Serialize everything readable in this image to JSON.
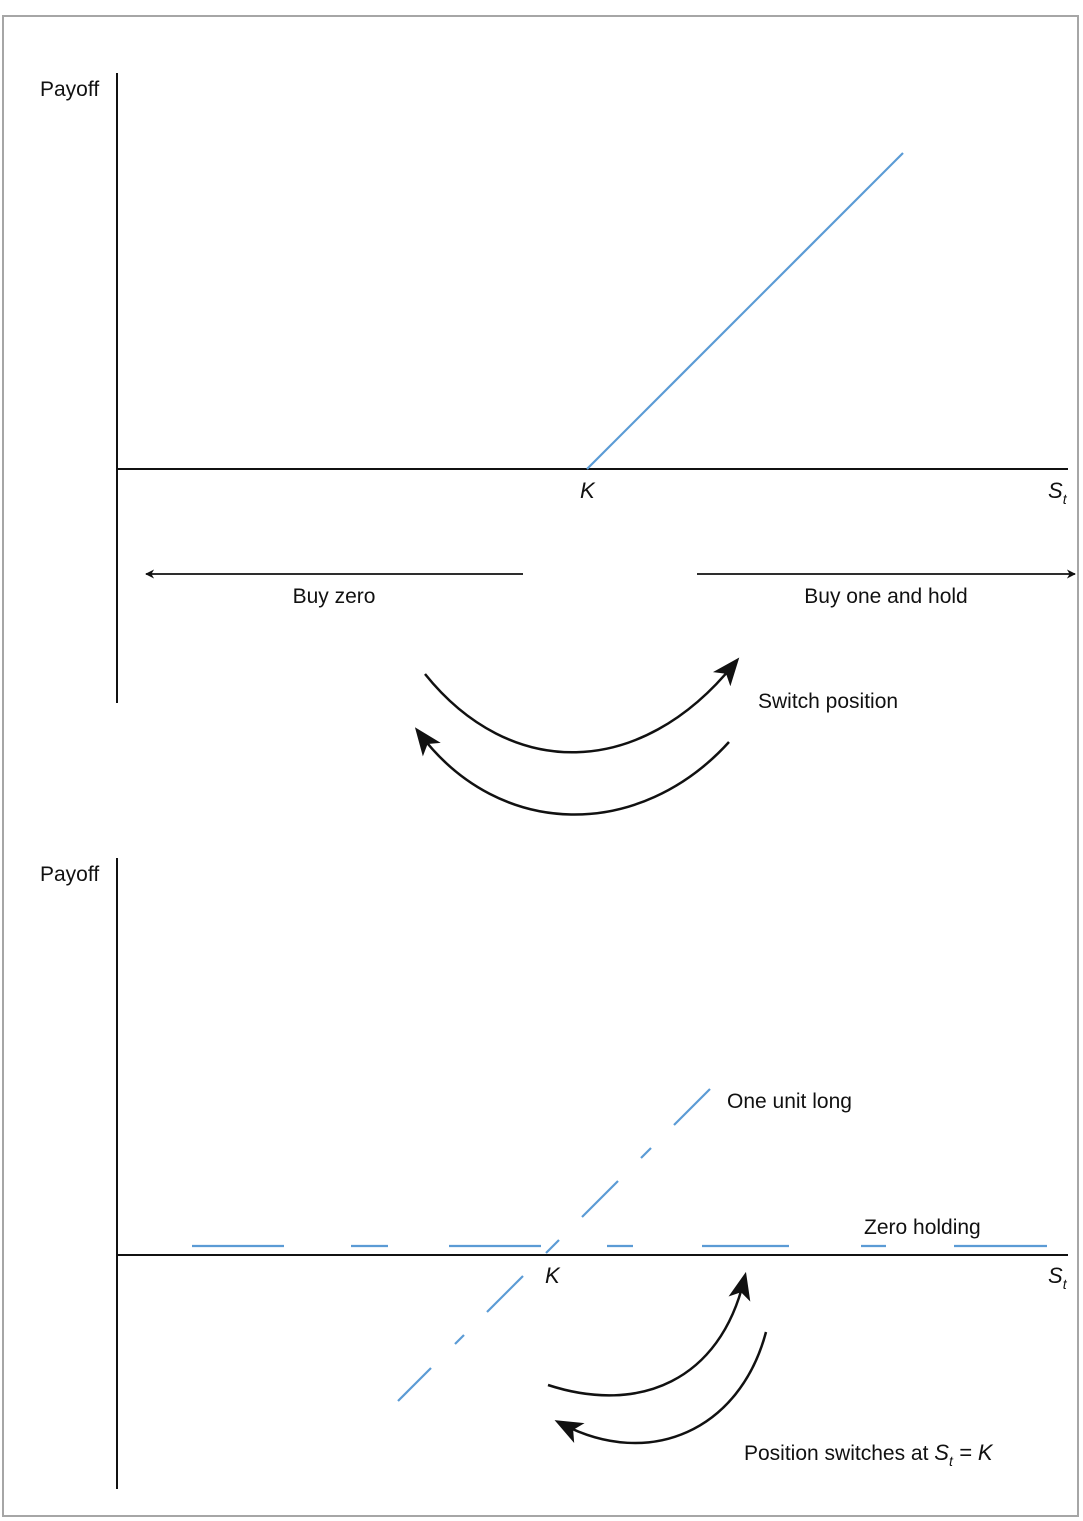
{
  "colors": {
    "payoff_line": "#5b9bd5",
    "axis": "#111111",
    "arrow": "#111111",
    "border": "#a6a6a6"
  },
  "top_panel": {
    "y_axis_label": "Payoff",
    "strike_label": "K",
    "x_axis_label_main": "S",
    "x_axis_label_sub": "t",
    "left_region_label": "Buy zero",
    "right_region_label": "Buy one and hold",
    "switch_label": "Switch position"
  },
  "bottom_panel": {
    "y_axis_label": "Payoff",
    "strike_label": "K",
    "x_axis_label_main": "S",
    "x_axis_label_sub": "t",
    "long_label": "One unit long",
    "zero_label": "Zero holding",
    "switch_label_prefix": "Position switches at ",
    "switch_label_var": "S",
    "switch_label_sub": "t",
    "switch_label_suffix": " = K"
  }
}
